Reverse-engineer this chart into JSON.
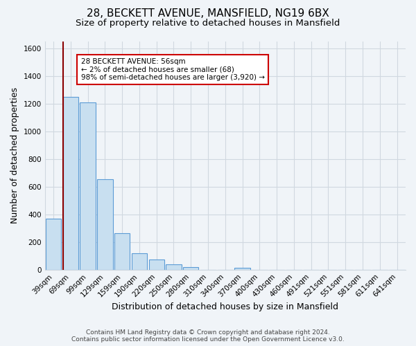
{
  "title": "28, BECKETT AVENUE, MANSFIELD, NG19 6BX",
  "subtitle": "Size of property relative to detached houses in Mansfield",
  "xlabel": "Distribution of detached houses by size in Mansfield",
  "ylabel": "Number of detached properties",
  "categories": [
    "39sqm",
    "69sqm",
    "99sqm",
    "129sqm",
    "159sqm",
    "190sqm",
    "220sqm",
    "250sqm",
    "280sqm",
    "310sqm",
    "340sqm",
    "370sqm",
    "400sqm",
    "430sqm",
    "460sqm",
    "491sqm",
    "521sqm",
    "551sqm",
    "581sqm",
    "611sqm",
    "641sqm"
  ],
  "values": [
    370,
    1250,
    1210,
    655,
    265,
    120,
    73,
    38,
    20,
    0,
    0,
    16,
    0,
    0,
    0,
    0,
    0,
    0,
    0,
    0,
    0
  ],
  "bar_color": "#c8dff0",
  "bar_edge_color": "#5b9bd5",
  "property_line_color": "#8b0000",
  "annotation_text": "28 BECKETT AVENUE: 56sqm\n← 2% of detached houses are smaller (68)\n98% of semi-detached houses are larger (3,920) →",
  "annotation_box_color": "#ffffff",
  "annotation_box_edge_color": "#cc0000",
  "ylim": [
    0,
    1650
  ],
  "yticks": [
    0,
    200,
    400,
    600,
    800,
    1000,
    1200,
    1400,
    1600
  ],
  "footer_line1": "Contains HM Land Registry data © Crown copyright and database right 2024.",
  "footer_line2": "Contains public sector information licensed under the Open Government Licence v3.0.",
  "background_color": "#f0f4f8",
  "plot_background_color": "#f0f4f8",
  "grid_color": "#d0d8e0",
  "title_fontsize": 11,
  "subtitle_fontsize": 9.5,
  "axis_label_fontsize": 9,
  "tick_fontsize": 7.5,
  "footer_fontsize": 6.5
}
